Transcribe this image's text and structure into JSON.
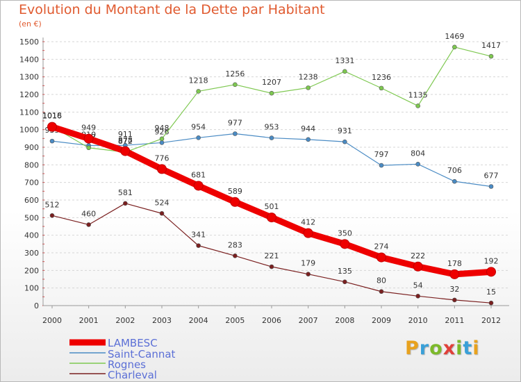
{
  "header": {
    "title": "Evolution du Montant de la Dette par Habitant",
    "unit": "(en €)"
  },
  "logo": {
    "letters": [
      "P",
      "r",
      "o",
      "x",
      "i",
      "t",
      "i"
    ],
    "colors": [
      "#e8a21e",
      "#3aa0d8",
      "#7cb92a",
      "#e0403a",
      "#7cb92a",
      "#3aa0d8",
      "#e8a21e"
    ]
  },
  "chart_data": {
    "type": "line",
    "x": [
      "2000",
      "2001",
      "2002",
      "2003",
      "2004",
      "2005",
      "2006",
      "2007",
      "2008",
      "2009",
      "2010",
      "2011",
      "2012"
    ],
    "ylim": [
      0,
      1500
    ],
    "yticks": [
      "0",
      "100",
      "200",
      "300",
      "400",
      "500",
      "600",
      "700",
      "800",
      "900",
      "1000",
      "1100",
      "1200",
      "1300",
      "1400",
      "1500"
    ],
    "grid": "horizontal",
    "legend_position": "bottom-left",
    "series": [
      {
        "name": "Charleval",
        "color": "#7a1f1f",
        "values": [
          512,
          460,
          581,
          524,
          341,
          283,
          221,
          179,
          135,
          80,
          54,
          32,
          15
        ],
        "labels": [
          "512",
          "460",
          "581",
          "524",
          "341",
          "283",
          "221",
          "179",
          "135",
          "80",
          "54",
          "32",
          "15"
        ]
      },
      {
        "name": "Saint-Cannat",
        "color": "#4a8bc4",
        "values": [
          935,
          910,
          911,
          926,
          954,
          977,
          953,
          944,
          931,
          797,
          804,
          706,
          677
        ],
        "labels": [
          "935",
          "910",
          "911",
          "926",
          "954",
          "977",
          "953",
          "944",
          "931",
          "797",
          "804",
          "706",
          "677"
        ]
      },
      {
        "name": "Rognes",
        "color": "#7ec850",
        "values": [
          1018,
          897,
          872,
          948,
          1218,
          1256,
          1207,
          1238,
          1331,
          1236,
          1135,
          1469,
          1417
        ],
        "labels": [
          "1018",
          "897",
          "872",
          "948",
          "1218",
          "1256",
          "1207",
          "1238",
          "1331",
          "1236",
          "1135",
          "1469",
          "1417"
        ]
      },
      {
        "name": "LAMBESC",
        "color": "#ee0000",
        "values": [
          1016,
          949,
          878,
          776,
          681,
          589,
          501,
          412,
          350,
          274,
          222,
          178,
          192
        ],
        "labels": [
          "1016",
          "949",
          "878",
          "776",
          "681",
          "589",
          "501",
          "412",
          "350",
          "274",
          "222",
          "178",
          "192"
        ]
      }
    ],
    "legend": [
      "LAMBESC",
      "Saint-Cannat",
      "Rognes",
      "Charleval"
    ]
  }
}
